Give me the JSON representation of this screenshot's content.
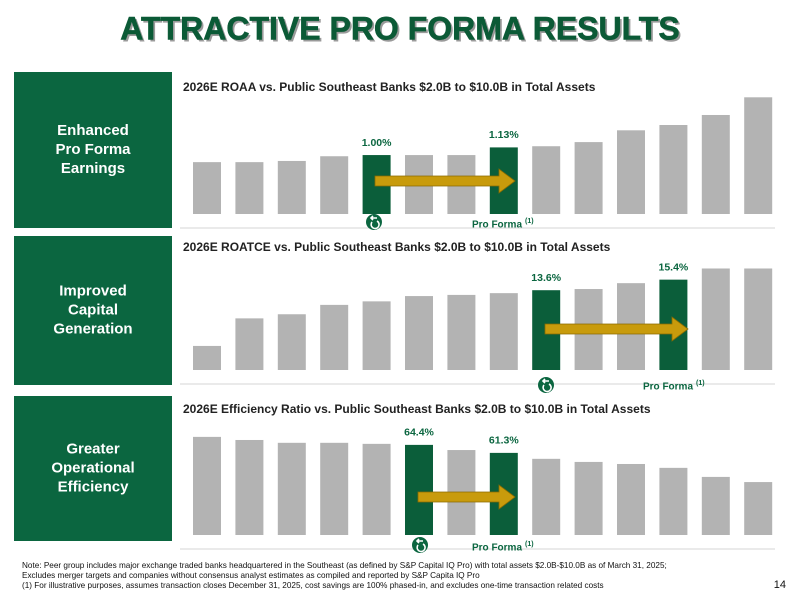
{
  "title": "ATTRACTIVE PRO FORMA RESULTS",
  "panels": [
    [
      "Enhanced",
      "Pro Forma",
      "Earnings"
    ],
    [
      "Improved",
      "Capital",
      "Generation"
    ],
    [
      "Greater",
      "Operational",
      "Efficiency"
    ]
  ],
  "chart_data": [
    {
      "type": "bar",
      "title": "2026E ROAA vs. Public Southeast Banks $2.0B to $10.0B in Total Assets",
      "values": [
        0.88,
        0.88,
        0.9,
        0.98,
        1.0,
        1.0,
        1.0,
        1.13,
        1.15,
        1.22,
        1.42,
        1.51,
        1.68,
        1.98
      ],
      "value_labels": [
        null,
        null,
        null,
        null,
        "1.00%",
        null,
        null,
        "1.13%",
        null,
        null,
        null,
        null,
        null,
        null
      ],
      "colors": [
        "#b3b3b3",
        "#b3b3b3",
        "#b3b3b3",
        "#b3b3b3",
        "#0b5e3a",
        "#b3b3b3",
        "#b3b3b3",
        "#0b5e3a",
        "#b3b3b3",
        "#b3b3b3",
        "#b3b3b3",
        "#b3b3b3",
        "#b3b3b3",
        "#b3b3b3"
      ],
      "ylim": [
        0,
        2.07
      ],
      "annotation": "Pro Forma",
      "footnote_marker": "(1)"
    },
    {
      "type": "bar",
      "title": "2026E ROATCE vs. Public Southeast Banks $2.0B to $10.0B in Total Assets",
      "values": [
        4.1,
        8.8,
        9.5,
        11.1,
        11.7,
        12.6,
        12.8,
        13.1,
        13.6,
        13.8,
        14.8,
        15.4,
        17.3,
        17.3
      ],
      "value_labels": [
        null,
        null,
        null,
        null,
        null,
        null,
        null,
        null,
        "13.6%",
        null,
        null,
        "15.4%",
        null,
        null
      ],
      "colors": [
        "#b3b3b3",
        "#b3b3b3",
        "#b3b3b3",
        "#b3b3b3",
        "#b3b3b3",
        "#b3b3b3",
        "#b3b3b3",
        "#b3b3b3",
        "#0b5e3a",
        "#b3b3b3",
        "#b3b3b3",
        "#0b5e3a",
        "#b3b3b3",
        "#b3b3b3"
      ],
      "ylim": [
        0,
        19.6
      ],
      "annotation": "Pro Forma",
      "footnote_marker": "(1)"
    },
    {
      "type": "bar",
      "title": "2026E Efficiency Ratio vs. Public Southeast Banks $2.0B to $10.0B in Total Assets",
      "values": [
        67.5,
        66.3,
        65.2,
        65.2,
        64.8,
        64.4,
        62.4,
        61.3,
        59.0,
        57.8,
        57.0,
        55.5,
        52.0,
        50.0
      ],
      "value_labels": [
        null,
        null,
        null,
        null,
        null,
        "64.4%",
        null,
        "61.3%",
        null,
        null,
        null,
        null,
        null,
        null
      ],
      "colors": [
        "#b3b3b3",
        "#b3b3b3",
        "#b3b3b3",
        "#b3b3b3",
        "#b3b3b3",
        "#0b5e3a",
        "#b3b3b3",
        "#0b5e3a",
        "#b3b3b3",
        "#b3b3b3",
        "#b3b3b3",
        "#b3b3b3",
        "#b3b3b3",
        "#b3b3b3"
      ],
      "ylim": [
        29.5,
        72.1
      ],
      "annotation": "Pro Forma",
      "footnote_marker": "(1)"
    }
  ],
  "notes": [
    "Note: Peer group includes major exchange traded banks headquartered in the Southeast (as defined by S&P Capital IQ Pro) with total assets $2.0B-$10.0B as of March 31, 2025;",
    "Excludes merger targets and companies without consensus analyst estimates as compiled and reported by S&P Capita IQ Pro",
    "(1) For illustrative purposes, assumes transaction closes December 31, 2025, cost savings are 100% phased-in, and excludes one-time transaction related costs"
  ],
  "page_number": "14"
}
